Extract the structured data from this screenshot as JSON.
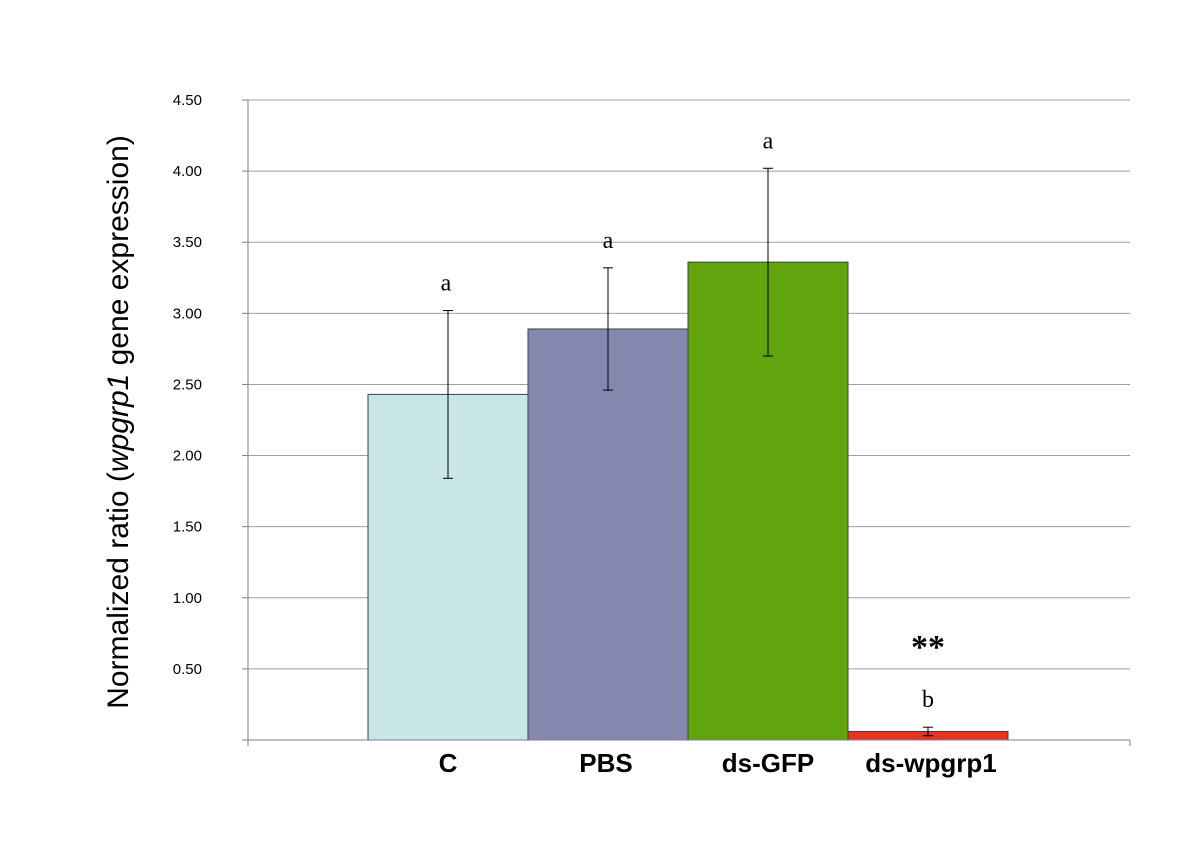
{
  "chart_data": {
    "type": "bar",
    "categories": [
      "C",
      "PBS",
      "ds-GFP",
      "ds-wpgrp1"
    ],
    "values": [
      2.43,
      2.89,
      3.36,
      0.06
    ],
    "errors": [
      0.59,
      0.43,
      0.66,
      0.03
    ],
    "significance": [
      "a",
      "a",
      "a",
      "b"
    ],
    "annotation": "**",
    "ylabel_prefix": "Normalized ratio (",
    "ylabel_italic": "wpgrp1",
    "ylabel_suffix": " gene expression)",
    "ylim": [
      0,
      4.5
    ],
    "yticks": [
      "",
      "0.50",
      "1.00",
      "1.50",
      "2.00",
      "2.50",
      "3.00",
      "3.50",
      "4.00",
      "4.50"
    ],
    "grid": true,
    "legend": "none",
    "colors": [
      "#c8e6e8",
      "#8488ae",
      "#62a40e",
      "#e8331e"
    ]
  }
}
